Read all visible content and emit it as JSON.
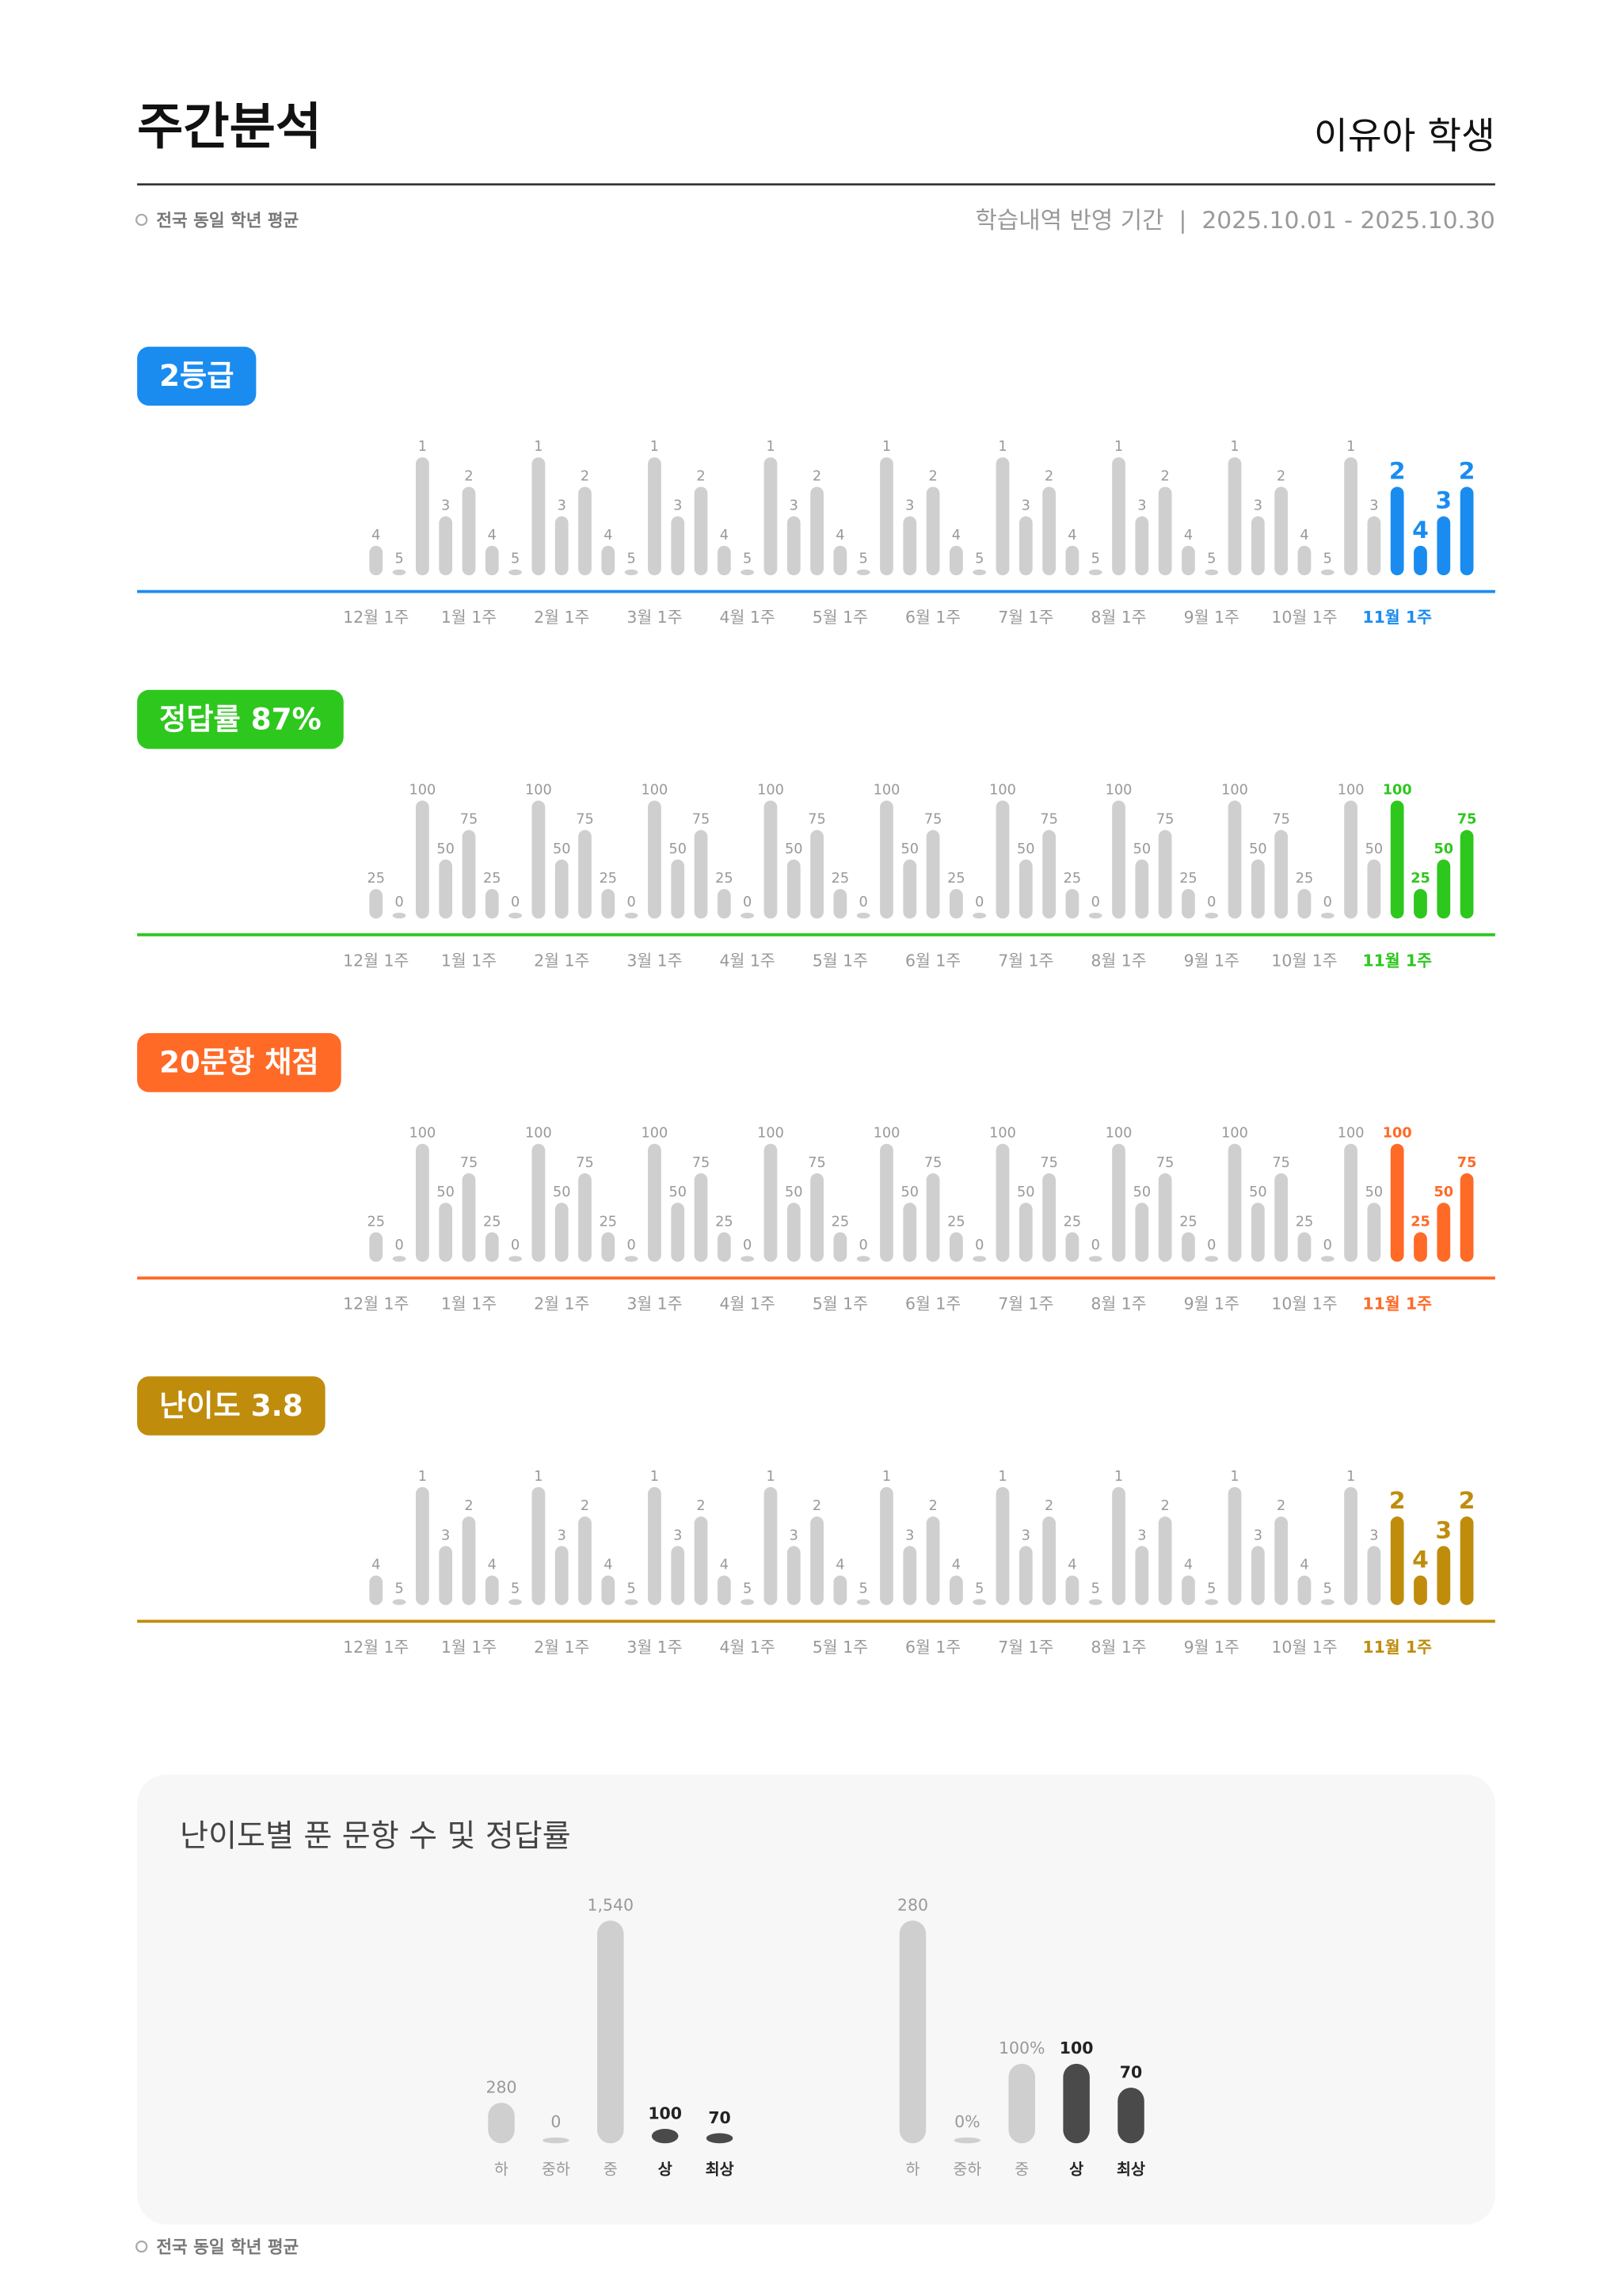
{
  "header": {
    "title": "주간분석",
    "student": "이유아 학생",
    "legend": "전국 동일 학년 평균",
    "period": "학습내역 반영 기간  |  2025.10.01 - 2025.10.30"
  },
  "panel_title": "난이도별 푼 문항 수 및 정답률",
  "footer_legend": "전국 동일 학년 평균",
  "chart_data": [
    {
      "type": "bar",
      "title": "2등급",
      "color": "#1a8cf0",
      "ylim": [
        5,
        1
      ],
      "categories": [
        "12월 1주",
        null,
        null,
        null,
        "1월 1주",
        null,
        null,
        null,
        "2월 1주",
        null,
        null,
        null,
        "3월 1주",
        null,
        null,
        null,
        "4월 1주",
        null,
        null,
        null,
        "5월 1주",
        null,
        null,
        null,
        "6월 1주",
        null,
        null,
        null,
        "7월 1주",
        null,
        null,
        null,
        "8월 1주",
        null,
        null,
        null,
        "9월 1주",
        null,
        null,
        null,
        "10월 1주",
        null,
        null,
        null,
        "11월 1주",
        null,
        null,
        null
      ],
      "values": [
        4,
        5,
        1,
        3,
        2,
        4,
        5,
        1,
        3,
        2,
        4,
        5,
        1,
        3,
        2,
        4,
        5,
        1,
        3,
        2,
        4,
        5,
        1,
        3,
        2,
        4,
        5,
        1,
        3,
        2,
        4,
        5,
        1,
        3,
        2,
        4,
        5,
        1,
        3,
        2,
        4,
        5,
        1,
        3,
        2,
        4,
        3,
        2
      ],
      "colors": [
        "#cfcfcf",
        "#cfcfcf",
        "#cfcfcf",
        "#cfcfcf",
        "#cfcfcf",
        "#cfcfcf",
        "#cfcfcf",
        "#cfcfcf",
        "#cfcfcf",
        "#cfcfcf",
        "#cfcfcf",
        "#cfcfcf",
        "#cfcfcf",
        "#cfcfcf",
        "#cfcfcf",
        "#cfcfcf",
        "#cfcfcf",
        "#cfcfcf",
        "#cfcfcf",
        "#cfcfcf",
        "#cfcfcf",
        "#cfcfcf",
        "#cfcfcf",
        "#cfcfcf",
        "#cfcfcf",
        "#cfcfcf",
        "#cfcfcf",
        "#cfcfcf",
        "#cfcfcf",
        "#cfcfcf",
        "#cfcfcf",
        "#cfcfcf",
        "#cfcfcf",
        "#cfcfcf",
        "#cfcfcf",
        "#cfcfcf",
        "#cfcfcf",
        "#cfcfcf",
        "#cfcfcf",
        "#cfcfcf",
        "#cfcfcf",
        "#cfcfcf",
        "#cfcfcf",
        "#cfcfcf",
        "#1a8cf0",
        "#1a8cf0",
        "#1a8cf0",
        "#1a8cf0"
      ]
    },
    {
      "type": "bar",
      "title": "정답률 87%",
      "color": "#2ec71e",
      "ylim": [
        0,
        100
      ],
      "categories": [
        "12월 1주",
        null,
        null,
        null,
        "1월 1주",
        null,
        null,
        null,
        "2월 1주",
        null,
        null,
        null,
        "3월 1주",
        null,
        null,
        null,
        "4월 1주",
        null,
        null,
        null,
        "5월 1주",
        null,
        null,
        null,
        "6월 1주",
        null,
        null,
        null,
        "7월 1주",
        null,
        null,
        null,
        "8월 1주",
        null,
        null,
        null,
        "9월 1주",
        null,
        null,
        null,
        "10월 1주",
        null,
        null,
        null,
        "11월 1주",
        null,
        null,
        null
      ],
      "values": [
        25,
        0,
        100,
        50,
        75,
        25,
        0,
        100,
        50,
        75,
        25,
        0,
        100,
        50,
        75,
        25,
        0,
        100,
        50,
        75,
        25,
        0,
        100,
        50,
        75,
        25,
        0,
        100,
        50,
        75,
        25,
        0,
        100,
        50,
        75,
        25,
        0,
        100,
        50,
        75,
        25,
        0,
        100,
        50,
        100,
        25,
        50,
        75
      ],
      "colors": [
        "#cfcfcf",
        "#cfcfcf",
        "#cfcfcf",
        "#cfcfcf",
        "#cfcfcf",
        "#cfcfcf",
        "#cfcfcf",
        "#cfcfcf",
        "#cfcfcf",
        "#cfcfcf",
        "#cfcfcf",
        "#cfcfcf",
        "#cfcfcf",
        "#cfcfcf",
        "#cfcfcf",
        "#cfcfcf",
        "#cfcfcf",
        "#cfcfcf",
        "#cfcfcf",
        "#cfcfcf",
        "#cfcfcf",
        "#cfcfcf",
        "#cfcfcf",
        "#cfcfcf",
        "#cfcfcf",
        "#cfcfcf",
        "#cfcfcf",
        "#cfcfcf",
        "#cfcfcf",
        "#cfcfcf",
        "#cfcfcf",
        "#cfcfcf",
        "#cfcfcf",
        "#cfcfcf",
        "#cfcfcf",
        "#cfcfcf",
        "#cfcfcf",
        "#cfcfcf",
        "#cfcfcf",
        "#cfcfcf",
        "#cfcfcf",
        "#cfcfcf",
        "#cfcfcf",
        "#cfcfcf",
        "#2ec71e",
        "#2ec71e",
        "#2ec71e",
        "#2ec71e"
      ]
    },
    {
      "type": "bar",
      "title": "20문항 채점",
      "color": "#ff6a26",
      "ylim": [
        0,
        100
      ],
      "categories": [
        "12월 1주",
        null,
        null,
        null,
        "1월 1주",
        null,
        null,
        null,
        "2월 1주",
        null,
        null,
        null,
        "3월 1주",
        null,
        null,
        null,
        "4월 1주",
        null,
        null,
        null,
        "5월 1주",
        null,
        null,
        null,
        "6월 1주",
        null,
        null,
        null,
        "7월 1주",
        null,
        null,
        null,
        "8월 1주",
        null,
        null,
        null,
        "9월 1주",
        null,
        null,
        null,
        "10월 1주",
        null,
        null,
        null,
        "11월 1주",
        null,
        null,
        null
      ],
      "values": [
        25,
        0,
        100,
        50,
        75,
        25,
        0,
        100,
        50,
        75,
        25,
        0,
        100,
        50,
        75,
        25,
        0,
        100,
        50,
        75,
        25,
        0,
        100,
        50,
        75,
        25,
        0,
        100,
        50,
        75,
        25,
        0,
        100,
        50,
        75,
        25,
        0,
        100,
        50,
        75,
        25,
        0,
        100,
        50,
        100,
        25,
        50,
        75
      ],
      "colors": [
        "#cfcfcf",
        "#cfcfcf",
        "#cfcfcf",
        "#cfcfcf",
        "#cfcfcf",
        "#cfcfcf",
        "#cfcfcf",
        "#cfcfcf",
        "#cfcfcf",
        "#cfcfcf",
        "#cfcfcf",
        "#cfcfcf",
        "#cfcfcf",
        "#cfcfcf",
        "#cfcfcf",
        "#cfcfcf",
        "#cfcfcf",
        "#cfcfcf",
        "#cfcfcf",
        "#cfcfcf",
        "#cfcfcf",
        "#cfcfcf",
        "#cfcfcf",
        "#cfcfcf",
        "#cfcfcf",
        "#cfcfcf",
        "#cfcfcf",
        "#cfcfcf",
        "#cfcfcf",
        "#cfcfcf",
        "#cfcfcf",
        "#cfcfcf",
        "#cfcfcf",
        "#cfcfcf",
        "#cfcfcf",
        "#cfcfcf",
        "#cfcfcf",
        "#cfcfcf",
        "#cfcfcf",
        "#cfcfcf",
        "#cfcfcf",
        "#cfcfcf",
        "#cfcfcf",
        "#cfcfcf",
        "#ff6a26",
        "#ff6a26",
        "#ff6a26",
        "#ff6a26"
      ]
    },
    {
      "type": "bar",
      "title": "난이도 3.8",
      "color": "#bf8c0c",
      "ylim": [
        5,
        1
      ],
      "categories": [
        "12월 1주",
        null,
        null,
        null,
        "1월 1주",
        null,
        null,
        null,
        "2월 1주",
        null,
        null,
        null,
        "3월 1주",
        null,
        null,
        null,
        "4월 1주",
        null,
        null,
        null,
        "5월 1주",
        null,
        null,
        null,
        "6월 1주",
        null,
        null,
        null,
        "7월 1주",
        null,
        null,
        null,
        "8월 1주",
        null,
        null,
        null,
        "9월 1주",
        null,
        null,
        null,
        "10월 1주",
        null,
        null,
        null,
        "11월 1주",
        null,
        null,
        null
      ],
      "values": [
        4,
        5,
        1,
        3,
        2,
        4,
        5,
        1,
        3,
        2,
        4,
        5,
        1,
        3,
        2,
        4,
        5,
        1,
        3,
        2,
        4,
        5,
        1,
        3,
        2,
        4,
        5,
        1,
        3,
        2,
        4,
        5,
        1,
        3,
        2,
        4,
        5,
        1,
        3,
        2,
        4,
        5,
        1,
        3,
        2,
        4,
        3,
        2
      ],
      "colors": [
        "#cfcfcf",
        "#cfcfcf",
        "#cfcfcf",
        "#cfcfcf",
        "#cfcfcf",
        "#cfcfcf",
        "#cfcfcf",
        "#cfcfcf",
        "#cfcfcf",
        "#cfcfcf",
        "#cfcfcf",
        "#cfcfcf",
        "#cfcfcf",
        "#cfcfcf",
        "#cfcfcf",
        "#cfcfcf",
        "#cfcfcf",
        "#cfcfcf",
        "#cfcfcf",
        "#cfcfcf",
        "#cfcfcf",
        "#cfcfcf",
        "#cfcfcf",
        "#cfcfcf",
        "#cfcfcf",
        "#cfcfcf",
        "#cfcfcf",
        "#cfcfcf",
        "#cfcfcf",
        "#cfcfcf",
        "#cfcfcf",
        "#cfcfcf",
        "#cfcfcf",
        "#cfcfcf",
        "#cfcfcf",
        "#cfcfcf",
        "#cfcfcf",
        "#cfcfcf",
        "#cfcfcf",
        "#cfcfcf",
        "#cfcfcf",
        "#cfcfcf",
        "#cfcfcf",
        "#cfcfcf",
        "#bf8c0c",
        "#bf8c0c",
        "#bf8c0c",
        "#bf8c0c"
      ]
    },
    {
      "type": "minibar",
      "color": "#4a4a4a",
      "ylim": [
        0,
        1540
      ],
      "categories": [
        "하",
        "중하",
        "중",
        "상",
        "최상"
      ],
      "values": [
        280,
        0,
        1540,
        100,
        70
      ],
      "value_labels": [
        "280",
        "0",
        "1,540",
        "100",
        "70"
      ],
      "colors": [
        "#cfcfcf",
        "#cfcfcf",
        "#cfcfcf",
        "#4a4a4a",
        "#4a4a4a"
      ]
    },
    {
      "type": "minibar",
      "color": "#4a4a4a",
      "ylim": [
        0,
        280
      ],
      "categories": [
        "하",
        "중하",
        "중",
        "상",
        "최상"
      ],
      "values": [
        280,
        0,
        100,
        100,
        70
      ],
      "value_labels": [
        "280",
        "0%",
        "100%",
        "100",
        "70"
      ],
      "colors": [
        "#cfcfcf",
        "#cfcfcf",
        "#cfcfcf",
        "#4a4a4a",
        "#4a4a4a"
      ]
    }
  ]
}
